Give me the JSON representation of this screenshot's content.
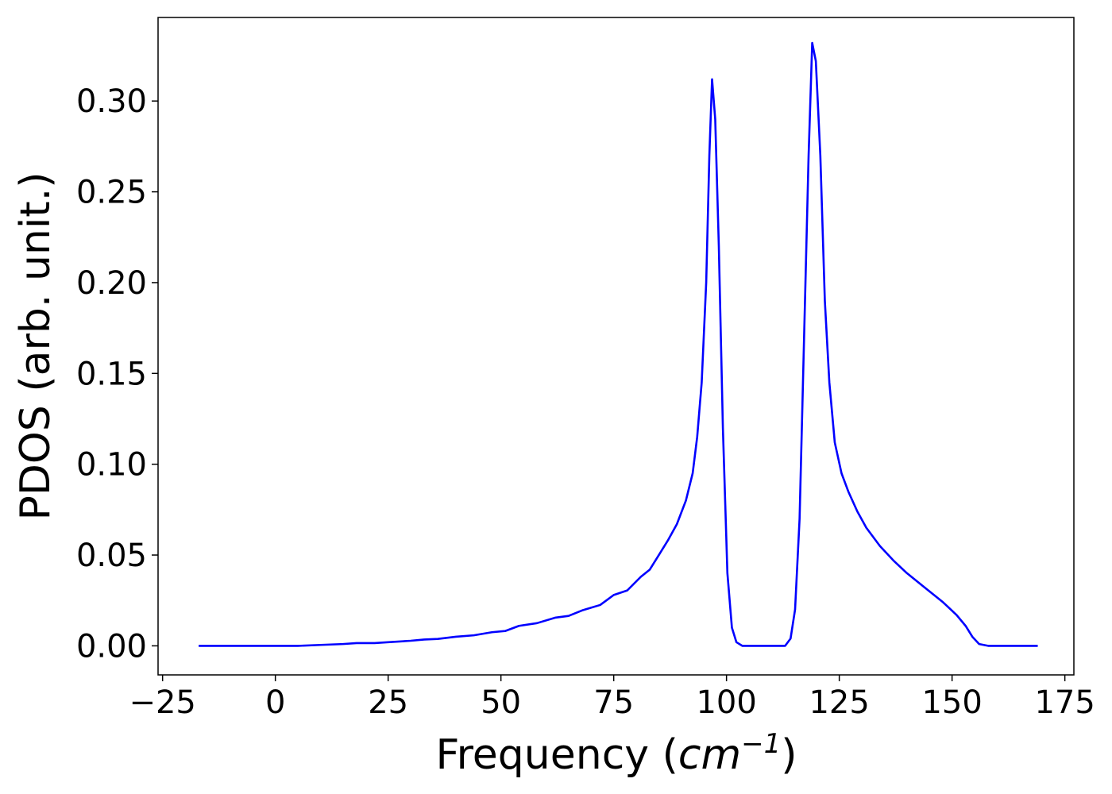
{
  "chart_data": {
    "type": "line",
    "xlabel_main": "Frequency (",
    "xlabel_unit": "cm",
    "xlabel_exp": "−1",
    "xlabel_close": ")",
    "ylabel": "PDOS (arb. unit.)",
    "xlim": [
      -26,
      177
    ],
    "ylim": [
      -0.016,
      0.346
    ],
    "xticks": [
      -25,
      0,
      25,
      50,
      75,
      100,
      125,
      150,
      175
    ],
    "xtick_labels": [
      "−25",
      "0",
      "25",
      "50",
      "75",
      "100",
      "125",
      "150",
      "175"
    ],
    "yticks": [
      0.0,
      0.05,
      0.1,
      0.15,
      0.2,
      0.25,
      0.3
    ],
    "ytick_labels": [
      "0.00",
      "0.05",
      "0.10",
      "0.15",
      "0.20",
      "0.25",
      "0.30"
    ],
    "grid": false,
    "series": [
      {
        "color": "#0000ff",
        "points": [
          [
            -17,
            0.0
          ],
          [
            0,
            0.0
          ],
          [
            5,
            0.0
          ],
          [
            10,
            0.0005
          ],
          [
            15,
            0.001
          ],
          [
            18,
            0.0015
          ],
          [
            22,
            0.0015
          ],
          [
            25,
            0.002
          ],
          [
            30,
            0.0028
          ],
          [
            33,
            0.0035
          ],
          [
            36,
            0.0038
          ],
          [
            40,
            0.005
          ],
          [
            44,
            0.0058
          ],
          [
            48,
            0.0075
          ],
          [
            51,
            0.0082
          ],
          [
            54,
            0.011
          ],
          [
            58,
            0.0125
          ],
          [
            62,
            0.0155
          ],
          [
            65,
            0.0165
          ],
          [
            68,
            0.0195
          ],
          [
            72,
            0.0225
          ],
          [
            75,
            0.028
          ],
          [
            78,
            0.0305
          ],
          [
            81,
            0.038
          ],
          [
            83,
            0.042
          ],
          [
            85,
            0.05
          ],
          [
            87,
            0.058
          ],
          [
            89,
            0.067
          ],
          [
            91,
            0.08
          ],
          [
            92.5,
            0.095
          ],
          [
            93.5,
            0.115
          ],
          [
            94.5,
            0.145
          ],
          [
            95.5,
            0.2
          ],
          [
            96.2,
            0.27
          ],
          [
            96.8,
            0.312
          ],
          [
            97.5,
            0.29
          ],
          [
            98.3,
            0.22
          ],
          [
            99.2,
            0.12
          ],
          [
            100.2,
            0.04
          ],
          [
            101.2,
            0.01
          ],
          [
            102.2,
            0.002
          ],
          [
            103.5,
            0.0
          ],
          [
            110,
            0.0
          ],
          [
            113,
            0.0
          ],
          [
            114.2,
            0.004
          ],
          [
            115.2,
            0.02
          ],
          [
            116.2,
            0.07
          ],
          [
            117.2,
            0.17
          ],
          [
            118.2,
            0.27
          ],
          [
            119.0,
            0.332
          ],
          [
            119.8,
            0.322
          ],
          [
            120.8,
            0.27
          ],
          [
            121.8,
            0.19
          ],
          [
            122.8,
            0.145
          ],
          [
            124,
            0.112
          ],
          [
            125.5,
            0.095
          ],
          [
            127,
            0.085
          ],
          [
            129,
            0.074
          ],
          [
            131,
            0.065
          ],
          [
            134,
            0.055
          ],
          [
            137,
            0.047
          ],
          [
            140,
            0.04
          ],
          [
            144,
            0.032
          ],
          [
            148,
            0.024
          ],
          [
            151,
            0.017
          ],
          [
            153,
            0.011
          ],
          [
            154.5,
            0.005
          ],
          [
            156,
            0.001
          ],
          [
            158,
            0.0
          ],
          [
            169,
            0.0
          ]
        ]
      }
    ]
  }
}
